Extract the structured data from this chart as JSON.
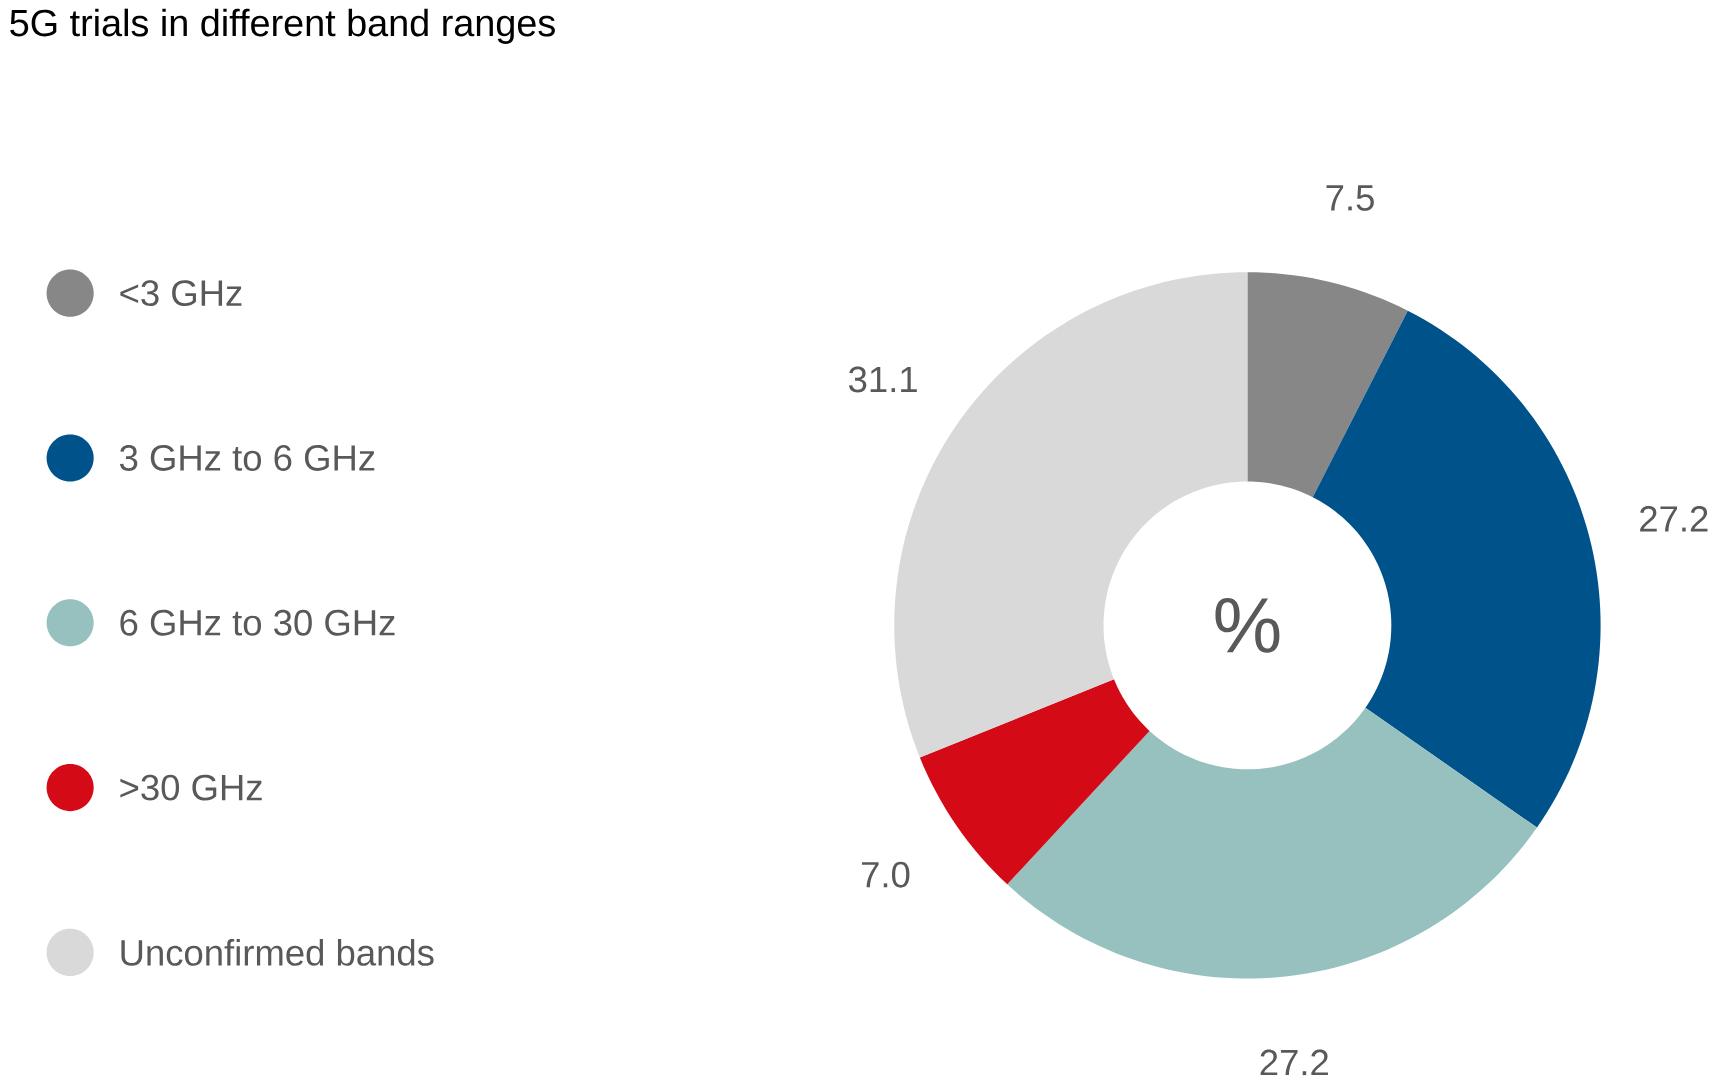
{
  "chart_data": {
    "type": "donut",
    "title": "5G trials in different band ranges",
    "categories": [
      "<3 GHz",
      "3 GHz to 6 GHz",
      "6 GHz to 30 GHz",
      ">30 GHz",
      "Unconfirmed bands"
    ],
    "values": [
      7.5,
      27.2,
      27.2,
      7.0,
      31.1
    ],
    "value_labels": [
      "7.5",
      "27.2",
      "27.2",
      "7.0",
      "31.1"
    ],
    "colors": [
      "#878787",
      "#00528b",
      "#97c1be",
      "#d40b16",
      "#d9d9d9"
    ],
    "annotations": [
      "%"
    ],
    "legend": "left"
  }
}
